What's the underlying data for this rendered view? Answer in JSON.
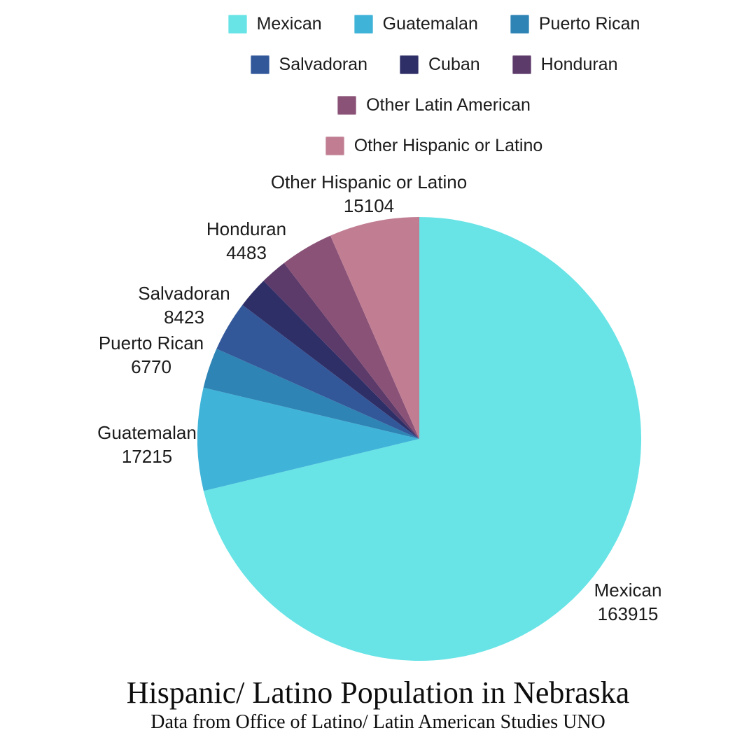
{
  "page": {
    "title": "Hispanic/ Latino Population in Nebraska",
    "subtitle": "Data from Office of Latino/ Latin American Studies UNO",
    "background": "#ffffff"
  },
  "legend": {
    "items": [
      {
        "label": "Mexican",
        "color": "#68e3e6"
      },
      {
        "label": "Guatemalan",
        "color": "#3fb3d8"
      },
      {
        "label": "Puerto Rican",
        "color": "#2e84b4"
      },
      {
        "label": "Salvadoran",
        "color": "#32589a"
      },
      {
        "label": "Cuban",
        "color": "#2f2f68"
      },
      {
        "label": "Honduran",
        "color": "#5c3a69"
      },
      {
        "label": "Other Latin American",
        "color": "#8a5277"
      },
      {
        "label": "Other Hispanic or Latino",
        "color": "#c17e93"
      }
    ]
  },
  "chart_data": {
    "type": "pie",
    "title": "Hispanic/ Latino Population in Nebraska",
    "subtitle": "Data from Office of Latino/ Latin American Studies UNO",
    "start_angle_deg": 0,
    "direction": "clockwise",
    "categories": [
      "Mexican",
      "Guatemalan",
      "Puerto Rican",
      "Salvadoran",
      "Cuban",
      "Honduran",
      "Other Latin American",
      "Other Hispanic or Latino"
    ],
    "values": [
      163915,
      17215,
      6770,
      8423,
      5300,
      4483,
      8900,
      15104
    ],
    "colors": [
      "#68e3e6",
      "#3fb3d8",
      "#2e84b4",
      "#32589a",
      "#2f2f68",
      "#5c3a69",
      "#8a5277",
      "#c17e93"
    ],
    "labeled_on_chart": [
      "Mexican",
      "Guatemalan",
      "Puerto Rican",
      "Salvadoran",
      "Honduran",
      "Other Hispanic or Latino"
    ],
    "note": "Cuban and Other Latin American slices carry no value labels in the image; their values are estimated from slice angles.",
    "legend_position": "top"
  },
  "slice_labels": [
    {
      "name": "Other Hispanic or Latino",
      "value": "15104"
    },
    {
      "name": "Honduran",
      "value": "4483"
    },
    {
      "name": "Salvadoran",
      "value": "8423"
    },
    {
      "name": "Puerto Rican",
      "value": "6770"
    },
    {
      "name": "Guatemalan",
      "value": "17215"
    },
    {
      "name": "Mexican",
      "value": "163915"
    }
  ]
}
